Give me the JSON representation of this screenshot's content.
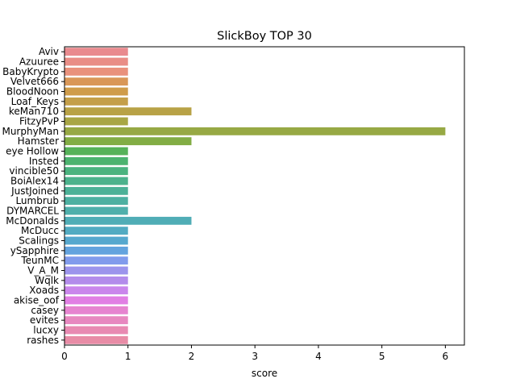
{
  "chart_data": {
    "type": "bar",
    "orientation": "horizontal",
    "title": "SlickBoy TOP 30",
    "xlabel": "score",
    "ylabel": "",
    "xlim": [
      0,
      6.3
    ],
    "xticks": [
      0,
      1,
      2,
      3,
      4,
      5,
      6
    ],
    "grid": false,
    "legend": "none",
    "categories": [
      "Aviv",
      "Azuuree",
      "BabyKrypto",
      "Velvet666",
      "BloodNoon",
      "Loaf_Keys",
      "keMan710",
      "FitzyPvP",
      "MurphyMan",
      "Hamster",
      "eye Hollow",
      "Insted",
      "vincible50",
      "BoiAlex14",
      "JustJoined",
      "Lumbrub",
      "DYMARCEL",
      "McDonalds",
      "McDucc",
      "Scalings",
      "ySapphire",
      "TeunMC",
      "V_A_M",
      "Wqlk",
      "Xoads",
      "akise_oof",
      "casey",
      "evites",
      "lucxy",
      "rashes"
    ],
    "values": [
      1,
      1,
      1,
      1,
      1,
      1,
      2,
      1,
      6,
      2,
      1,
      1,
      1,
      1,
      1,
      1,
      1,
      2,
      1,
      1,
      1,
      1,
      1,
      1,
      1,
      1,
      1,
      1,
      1,
      1
    ],
    "colors": [
      "#e98a8e",
      "#e98d86",
      "#e9917c",
      "#d99757",
      "#cf9c4a",
      "#c49f49",
      "#b8a246",
      "#a8a645",
      "#97a944",
      "#82ad44",
      "#56b259",
      "#4cb36f",
      "#4bb37f",
      "#4cb28c",
      "#4cb197",
      "#4db0a1",
      "#4fafab",
      "#50adb6",
      "#52abc2",
      "#56a8ce",
      "#63a3de",
      "#819bec",
      "#9c94ec",
      "#b38ceb",
      "#ca86ec",
      "#e17fe4",
      "#e684d0",
      "#e788c0",
      "#e88ab2",
      "#e88ca6"
    ]
  }
}
